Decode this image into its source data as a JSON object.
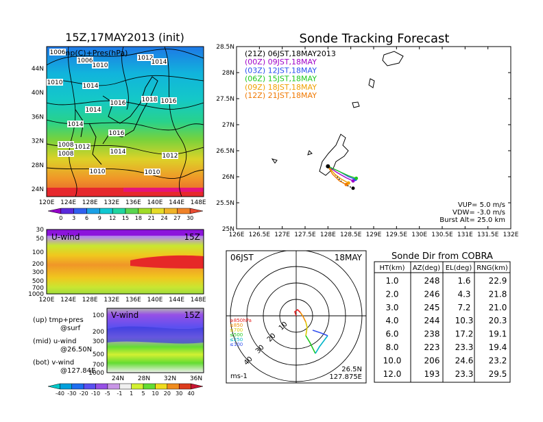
{
  "init_title": "15Z,17MAY2013 (init)",
  "main_title": "Sonde Tracking Forecast",
  "map_panel": {
    "overlay_label": "Temp(C)+Pres(hPa)",
    "lat_ticks": [
      "44N",
      "40N",
      "36N",
      "32N",
      "28N",
      "24N"
    ],
    "lon_ticks": [
      "120E",
      "124E",
      "128E",
      "132E",
      "136E",
      "140E",
      "144E",
      "148E"
    ],
    "isobar_labels": [
      "1006",
      "1006",
      "1010",
      "1012",
      "1014",
      "1010",
      "1014",
      "1016",
      "1018",
      "1016",
      "1014",
      "1016",
      "1014",
      "1012",
      "1010",
      "1008",
      "1014",
      "1012",
      "1008",
      "1010"
    ],
    "colorbar_values": [
      "0",
      "3",
      "6",
      "9",
      "12",
      "15",
      "18",
      "21",
      "24",
      "27",
      "30"
    ],
    "colorbar_colors": [
      "#9400c8",
      "#5a2adc",
      "#3060f0",
      "#1aa0e6",
      "#11c8d2",
      "#20d6a0",
      "#5ad650",
      "#a0dc28",
      "#e6dc28",
      "#f0b428",
      "#f08228",
      "#e64b32"
    ]
  },
  "uwind_panel": {
    "label": "U-wind",
    "time": "15Z",
    "y_ticks": [
      "30",
      "50",
      "100",
      "200",
      "300",
      "500",
      "700",
      "1000"
    ],
    "x_ticks": [
      "120E",
      "124E",
      "128E",
      "132E",
      "136E",
      "140E",
      "144E",
      "148E"
    ]
  },
  "vwind_panel": {
    "label": "V-wind",
    "time": "15Z",
    "y_ticks": [
      "100",
      "200",
      "300",
      "500",
      "700",
      "1000"
    ],
    "x_ticks": [
      "24N",
      "28N",
      "32N",
      "36N"
    ],
    "colorbar_values": [
      "-40",
      "-30",
      "-20",
      "-10",
      "-5",
      "-1",
      "1",
      "5",
      "10",
      "20",
      "30",
      "40"
    ],
    "colorbar_colors": [
      "#00c8c8",
      "#00a0dc",
      "#1e6ef0",
      "#5a50f0",
      "#9650e6",
      "#c896e6",
      "#f0f0f0",
      "#d2f032",
      "#64dc32",
      "#f0dc1e",
      "#f08c1e",
      "#dc3c1e",
      "#c81432"
    ]
  },
  "legend_notes": [
    {
      "head": "(up) tmp+pres",
      "sub": "@surf"
    },
    {
      "head": "(mid) u-wind",
      "sub": "@26.50N"
    },
    {
      "head": "(bot) v-wind",
      "sub": "@127.84E"
    }
  ],
  "tracking": {
    "lat_ticks": [
      "28.5N",
      "28N",
      "27.5N",
      "27N",
      "26.5N",
      "26N",
      "25.5N",
      "25N"
    ],
    "lon_ticks": [
      "126E",
      "126.5E",
      "127E",
      "127.5E",
      "128E",
      "128.5E",
      "129E",
      "129.5E",
      "130E",
      "130.5E",
      "131E",
      "131.5E",
      "132E"
    ],
    "legend": [
      {
        "label": "(21Z)  06JST,18MAY2013",
        "color": "#000000"
      },
      {
        "label": "(00Z)  09JST,18MAY",
        "color": "#a000c8"
      },
      {
        "label": "(03Z)  12JST,18MAY",
        "color": "#2850f0"
      },
      {
        "label": "(06Z)  15JST,18MAY",
        "color": "#1ec81e"
      },
      {
        "label": "(09Z)  18JST,18MAY",
        "color": "#f0a000"
      },
      {
        "label": "(12Z)  21JST,18MAY",
        "color": "#f07800"
      }
    ],
    "info": [
      "VUP=  5.0  m/s",
      "VDW= -3.0  m/s",
      "Burst Alt=  25.0  km"
    ],
    "launch": {
      "lon": 128.0,
      "lat": 26.2
    }
  },
  "polar": {
    "time_label": "06JST",
    "date_label": "18MAY",
    "ring_labels": [
      "10",
      "20",
      "30",
      "40"
    ],
    "pressure_legend": [
      {
        "label": "≥850hPa",
        "color": "#e61e1e"
      },
      {
        "label": "≤850",
        "color": "#f08c00"
      },
      {
        "label": "≤700",
        "color": "#dcc800"
      },
      {
        "label": "≤500",
        "color": "#1ec81e"
      },
      {
        "label": "≤250",
        "color": "#00b4c8"
      },
      {
        "label": "≤100",
        "color": "#3250f0"
      }
    ],
    "unit": "ms-1",
    "position": [
      "26.5N",
      "127.875E"
    ]
  },
  "sonde_table": {
    "title": "Sonde Dir from COBRA",
    "headers": [
      "HT(km)",
      "AZ(deg)",
      "EL(deg)",
      "RNG(km)"
    ],
    "rows": [
      [
        "1.0",
        "248",
        "1.6",
        "22.9"
      ],
      [
        "2.0",
        "246",
        "4.3",
        "21.8"
      ],
      [
        "3.0",
        "245",
        "7.2",
        "21.0"
      ],
      [
        "4.0",
        "244",
        "10.3",
        "20.3"
      ],
      [
        "6.0",
        "238",
        "17.2",
        "19.1"
      ],
      [
        "8.0",
        "223",
        "23.3",
        "19.4"
      ],
      [
        "10.0",
        "206",
        "24.6",
        "23.2"
      ],
      [
        "12.0",
        "193",
        "23.3",
        "29.5"
      ]
    ]
  },
  "chart_data": [
    {
      "type": "line",
      "title": "Sonde Tracking Forecast",
      "xlabel": "",
      "ylabel": "",
      "xlim": [
        126,
        132
      ],
      "ylim": [
        25,
        28.5
      ],
      "series": [
        {
          "name": "(21Z) 06JST,18MAY2013",
          "x": [
            128.0,
            128.15,
            128.3,
            128.45,
            128.55
          ],
          "y": [
            26.2,
            26.05,
            25.9,
            25.82,
            25.78
          ]
        },
        {
          "name": "(00Z) 09JST,18MAY",
          "x": [
            128.0,
            128.2,
            128.4,
            128.55
          ],
          "y": [
            26.2,
            26.08,
            25.98,
            25.92
          ]
        },
        {
          "name": "(03Z) 12JST,18MAY",
          "x": [
            128.0,
            128.25,
            128.45,
            128.6
          ],
          "y": [
            26.2,
            26.1,
            26.0,
            25.95
          ]
        },
        {
          "name": "(06Z) 15JST,18MAY",
          "x": [
            128.0,
            128.25,
            128.45,
            128.62
          ],
          "y": [
            26.2,
            26.1,
            26.02,
            25.97
          ]
        },
        {
          "name": "(09Z) 18JST,18MAY",
          "x": [
            128.0,
            128.15,
            128.3,
            128.45
          ],
          "y": [
            26.2,
            26.05,
            25.95,
            25.88
          ]
        },
        {
          "name": "(12Z) 21JST,18MAY",
          "x": [
            128.0,
            128.1,
            128.25,
            128.4
          ],
          "y": [
            26.2,
            26.05,
            25.92,
            25.85
          ]
        }
      ]
    },
    {
      "type": "table",
      "title": "Sonde Dir from COBRA",
      "columns": [
        "HT(km)",
        "AZ(deg)",
        "EL(deg)",
        "RNG(km)"
      ],
      "rows": [
        [
          1.0,
          248,
          1.6,
          22.9
        ],
        [
          2.0,
          246,
          4.3,
          21.8
        ],
        [
          3.0,
          245,
          7.2,
          21.0
        ],
        [
          4.0,
          244,
          10.3,
          20.3
        ],
        [
          6.0,
          238,
          17.2,
          19.1
        ],
        [
          8.0,
          223,
          23.3,
          19.4
        ],
        [
          10.0,
          206,
          24.6,
          23.2
        ],
        [
          12.0,
          193,
          23.3,
          29.5
        ]
      ]
    }
  ]
}
